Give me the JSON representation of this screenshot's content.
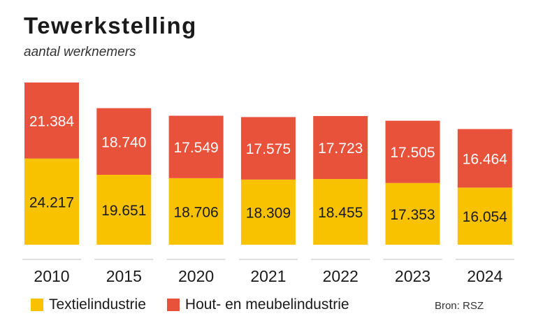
{
  "header": {
    "title": "Tewerkstelling",
    "subtitle": "aantal werknemers"
  },
  "legend": [
    {
      "label": "Textielindustrie",
      "color": "#f8c200"
    },
    {
      "label": "Hout- en meubelindustrie",
      "color": "#e8513a"
    }
  ],
  "source": "Bron: RSZ",
  "chart_data": {
    "type": "bar",
    "stacked": true,
    "categories": [
      "2010",
      "2015",
      "2020",
      "2021",
      "2022",
      "2023",
      "2024"
    ],
    "series": [
      {
        "name": "Textielindustrie",
        "color": "#f8c200",
        "values": [
          24217,
          19651,
          18706,
          18309,
          18455,
          17353,
          16054
        ],
        "labels": [
          "24.217",
          "19.651",
          "18.706",
          "18.309",
          "18.455",
          "17.353",
          "16.054"
        ]
      },
      {
        "name": "Hout- en meubelindustrie",
        "color": "#e8513a",
        "values": [
          21384,
          18740,
          17549,
          17575,
          17723,
          17505,
          16464
        ],
        "labels": [
          "21.384",
          "18.740",
          "17.549",
          "17.575",
          "17.723",
          "17.505",
          "16.464"
        ]
      }
    ],
    "title": "Tewerkstelling",
    "subtitle": "aantal werknemers",
    "xlabel": "",
    "ylabel": "",
    "ylim": [
      0,
      45601
    ],
    "grid": false,
    "legend_position": "bottom-left"
  }
}
